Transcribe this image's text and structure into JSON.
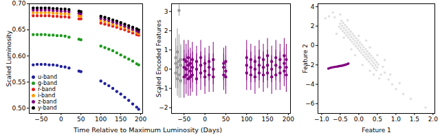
{
  "chart_data": [
    {
      "type": "scatter",
      "xlabel": "Time Relative to Maximum Luminosity (Days)",
      "ylabel": "Scaled Luminosity",
      "legend": "lower left",
      "marker": "circle",
      "x": [
        -70,
        -60,
        -50,
        -40,
        -30,
        -20,
        -10,
        0,
        10,
        20,
        45,
        50,
        100,
        110,
        120,
        130,
        140,
        150,
        160,
        170,
        180,
        190,
        195
      ],
      "series": [
        {
          "name": "u-band",
          "color": "#22229a",
          "values": [
            0.583,
            0.584,
            0.584,
            0.584,
            0.583,
            0.583,
            0.582,
            0.58,
            0.579,
            0.577,
            0.571,
            0.57,
            0.552,
            0.547,
            0.543,
            0.538,
            0.532,
            0.527,
            0.521,
            0.515,
            0.508,
            0.502,
            0.498
          ]
        },
        {
          "name": "g-band",
          "color": "#1f9a1f",
          "values": [
            0.641,
            0.641,
            0.641,
            0.641,
            0.64,
            0.64,
            0.639,
            0.639,
            0.638,
            0.636,
            0.632,
            0.631,
            0.619,
            0.616,
            0.613,
            0.61,
            0.606,
            0.602,
            0.598,
            0.594,
            0.59,
            0.585,
            0.583
          ]
        },
        {
          "name": "r-band",
          "color": "#e0211c",
          "values": [
            0.677,
            0.677,
            0.677,
            0.677,
            0.677,
            0.676,
            0.676,
            0.675,
            0.675,
            0.674,
            0.671,
            0.671,
            0.663,
            0.661,
            0.659,
            0.657,
            0.655,
            0.652,
            0.65,
            0.647,
            0.644,
            0.641,
            0.64
          ]
        },
        {
          "name": "i-band",
          "color": "#ff9a00",
          "values": [
            0.683,
            0.683,
            0.683,
            0.683,
            0.683,
            0.682,
            0.682,
            0.681,
            0.681,
            0.68,
            0.677,
            0.676,
            0.668,
            0.666,
            0.664,
            0.661,
            0.659,
            0.656,
            0.654,
            0.651,
            0.648,
            0.645,
            0.643
          ]
        },
        {
          "name": "z-band",
          "color": "#800080",
          "values": [
            0.688,
            0.688,
            0.688,
            0.688,
            0.688,
            0.687,
            0.687,
            0.686,
            0.686,
            0.685,
            0.682,
            0.681,
            0.672,
            0.67,
            0.668,
            0.665,
            0.663,
            0.66,
            0.657,
            0.654,
            0.651,
            0.648,
            0.646
          ]
        },
        {
          "name": "y-band",
          "color": "#000000",
          "values": [
            0.692,
            0.692,
            0.692,
            0.692,
            0.692,
            0.691,
            0.691,
            0.69,
            0.69,
            0.689,
            0.686,
            0.685,
            0.676,
            0.674,
            0.672,
            0.669,
            0.667,
            0.664,
            0.661,
            0.658,
            0.655,
            0.652,
            0.65
          ]
        }
      ],
      "xlim": [
        -80,
        205
      ],
      "xticks": [
        -50,
        0,
        50,
        100,
        150,
        200
      ],
      "ylim": [
        0.49,
        0.7
      ],
      "yticks": [
        {
          "value": 0.5,
          "label": "0.50"
        },
        0.55,
        {
          "value": 0.6,
          "label": "0.60"
        },
        0.65,
        {
          "value": 0.7,
          "label": "0.70"
        }
      ]
    },
    {
      "type": "scatter",
      "ylabel": "Scaled Encoded Features",
      "marker": "circle",
      "series": [
        {
          "color": "#999999",
          "x": [
            -70,
            -70,
            -70,
            -66,
            -66,
            -66,
            -62,
            -62,
            -62,
            -58,
            -58,
            -58
          ],
          "values": [
            0.3,
            -0.2,
            0.6,
            0.1,
            -0.5,
            0.9,
            3.05,
            0.4,
            -0.3,
            0.2,
            -0.6,
            0.5
          ],
          "errors": [
            0.9,
            0.8,
            1.0,
            1.1,
            0.9,
            1.2,
            0.3,
            1.4,
            1.2,
            1.0,
            0.9,
            0.8
          ]
        },
        {
          "color": "#800080",
          "x": [
            -50,
            -50,
            -50,
            -45,
            -45,
            -45,
            -40,
            -40,
            -40,
            -35,
            -35,
            -35,
            -30,
            -30,
            -30,
            -20,
            -20,
            -20,
            -10,
            -10,
            -10,
            0,
            0,
            0,
            10,
            10,
            10,
            20,
            20,
            20,
            45,
            45,
            45,
            50,
            50,
            50,
            100,
            100,
            100,
            110,
            110,
            110,
            120,
            120,
            120,
            130,
            130,
            130,
            140,
            140,
            140,
            150,
            150,
            150,
            160,
            160,
            160,
            170,
            170,
            170,
            180,
            180,
            180,
            190,
            190,
            190,
            195,
            195,
            195
          ],
          "values": [
            0.5,
            0.1,
            -0.4,
            0.4,
            0,
            -0.3,
            0.6,
            0.2,
            -0.5,
            0.3,
            -0.1,
            -0.4,
            0.5,
            0.1,
            -0.3,
            0.4,
            0,
            -0.5,
            0.6,
            0.2,
            -0.2,
            0.3,
            -0.1,
            -0.4,
            0.4,
            0.1,
            -0.3,
            0.5,
            0,
            -0.4,
            0.3,
            0.1,
            -0.3,
            0.4,
            -0.1,
            -0.4,
            0.6,
            0.2,
            -0.2,
            0.5,
            0.1,
            -0.3,
            0.4,
            0,
            -0.4,
            0.6,
            0.2,
            -0.2,
            0.5,
            0.1,
            -0.3,
            0.7,
            0.2,
            -0.2,
            0.4,
            0,
            -0.4,
            0.6,
            0.2,
            -0.3,
            0.5,
            0.1,
            -0.2,
            0.7,
            0.3,
            -0.1,
            0.5,
            0.1,
            -0.3
          ],
          "errors": [
            1.0,
            0.9,
            1.1,
            0.9,
            0.8,
            1.0,
            0.9,
            0.8,
            0.9,
            0.8,
            0.9,
            1.0,
            0.9,
            0.8,
            0.9,
            0.8,
            0.8,
            0.9,
            0.9,
            0.7,
            0.9,
            0.8,
            0.8,
            0.9,
            0.8,
            0.7,
            0.9,
            0.9,
            0.8,
            0.8,
            0.8,
            0.7,
            0.8,
            0.8,
            0.8,
            0.9,
            0.9,
            0.8,
            0.9,
            0.8,
            0.8,
            0.8,
            0.8,
            0.7,
            0.9,
            0.9,
            0.8,
            0.8,
            0.8,
            0.8,
            0.9,
            0.9,
            0.8,
            0.8,
            0.8,
            0.7,
            0.9,
            0.9,
            0.8,
            0.8,
            0.8,
            0.8,
            0.9,
            0.9,
            0.8,
            0.8,
            0.8,
            0.7,
            0.9
          ]
        }
      ],
      "xlim": [
        -80,
        205
      ],
      "xticks": [
        -50,
        0,
        50,
        100,
        150,
        200
      ],
      "ylim": [
        -2.3,
        3.4
      ],
      "yticks": [
        -2,
        -1,
        0,
        1,
        2,
        3
      ]
    },
    {
      "type": "scatter",
      "xlabel": "Feature 1",
      "ylabel": "Feature 2",
      "marker": "circle",
      "series": [
        {
          "color": "#000000",
          "x": [
            -0.53,
            -0.5,
            -0.47,
            -0.48,
            -0.45,
            -0.42,
            -0.43,
            -0.4,
            -0.37,
            -0.38,
            -0.35,
            -0.32,
            -0.33,
            -0.3,
            -0.27,
            -0.28,
            -0.25,
            -0.22,
            -0.23,
            -0.2,
            -0.17,
            -0.18,
            -0.15,
            -0.12,
            -0.13,
            -0.1,
            -0.07,
            -0.08,
            -0.05,
            -0.02,
            -0.03,
            0,
            0.03,
            0.02,
            0.05,
            0.08,
            0.07,
            0.1,
            0.13,
            0.12,
            0.15,
            0.18,
            0.17,
            0.2,
            0.23,
            0.22,
            0.25,
            0.28,
            0.27,
            0.3,
            0.33,
            0.32,
            0.35,
            0.38,
            0.37,
            0.4,
            0.43,
            0.42,
            0.45,
            0.48,
            0.47,
            0.5,
            0.53,
            -0.8,
            -0.7,
            -0.6,
            -0.3,
            -0.2,
            0.2,
            0.3,
            0.5,
            0.7,
            0.6,
            0.55,
            0.7,
            0.8,
            0.9,
            1.0,
            1.2,
            1.4,
            1.8,
            1.1,
            0.4,
            -0.1,
            0,
            -0.4,
            0.1,
            -0.9,
            -0.5,
            0.3,
            0.65,
            0.85,
            -0.65
          ],
          "values": [
            1.95,
            2.25,
            2.55,
            1.73,
            2.03,
            2.33,
            1.5,
            1.8,
            2.1,
            1.28,
            1.58,
            1.88,
            1.05,
            1.35,
            1.65,
            0.83,
            1.13,
            1.43,
            0.6,
            0.9,
            1.2,
            0.38,
            0.68,
            0.98,
            0.15,
            0.45,
            0.75,
            -0.08,
            0.23,
            0.53,
            -0.3,
            0,
            0.3,
            -0.53,
            -0.23,
            0.08,
            -0.75,
            -0.45,
            -0.15,
            -0.98,
            -0.68,
            -0.38,
            -1.2,
            -0.9,
            -0.6,
            -1.43,
            -1.13,
            -0.83,
            -1.65,
            -1.35,
            -1.05,
            -1.88,
            -1.58,
            -1.28,
            -2.1,
            -1.8,
            -1.5,
            -2.33,
            -2.03,
            -1.73,
            -2.55,
            -2.25,
            -1.95,
            3.0,
            3.4,
            1.2,
            2.6,
            -0.4,
            0.5,
            -0.2,
            -1.0,
            -1.5,
            -3.0,
            -3.4,
            -2.8,
            -3.5,
            -4.0,
            -4.5,
            -5.0,
            -5.5,
            -6.4,
            -3.9,
            -3.0,
            -1.0,
            1.0,
            0.8,
            -2.0,
            2.8,
            3.2,
            -2.6,
            -2.2,
            -3.0,
            2.9
          ]
        },
        {
          "color": "#800080",
          "x": [
            -0.82,
            -0.78,
            -0.74,
            -0.7,
            -0.66,
            -0.62,
            -0.58,
            -0.55,
            -0.52,
            -0.48,
            -0.45,
            -0.42,
            -0.39,
            -0.36,
            -0.33,
            -0.3,
            -0.28
          ],
          "values": [
            -2.38,
            -2.32,
            -2.28,
            -2.25,
            -2.22,
            -2.2,
            -2.17,
            -2.15,
            -2.12,
            -2.1,
            -2.08,
            -2.05,
            -2.02,
            -1.98,
            -1.95,
            -1.9,
            -1.87
          ]
        }
      ],
      "xlim": [
        -1.1,
        2.05
      ],
      "xticks": [
        {
          "value": -1,
          "label": "−1.0"
        },
        -0.5,
        {
          "value": 0,
          "label": "0.0"
        },
        0.5,
        {
          "value": 1,
          "label": "1.0"
        },
        1.5,
        {
          "value": 2,
          "label": "2.0"
        }
      ],
      "ylim": [
        -7,
        4.3
      ],
      "yticks": [
        -6,
        -4,
        -2,
        0,
        2,
        4
      ]
    }
  ]
}
